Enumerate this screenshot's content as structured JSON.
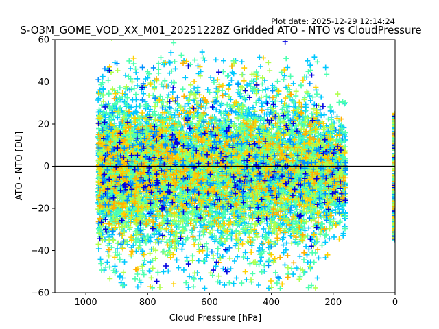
{
  "header": {
    "plot_date": "Plot date: 2025-12-29 12:14:24"
  },
  "chart_data": {
    "type": "scatter",
    "title": "S-O3M_GOME_VOD_XX_M01_20251228Z Gridded ATO - NTO vs CloudPressure",
    "xlabel": "Cloud Pressure [hPa]",
    "ylabel": "ATO - NTO [DU]",
    "xlim": [
      1100,
      0
    ],
    "ylim": [
      -60,
      60
    ],
    "x_inverted": true,
    "xticks": [
      1000,
      800,
      600,
      400,
      200,
      0
    ],
    "yticks": [
      -60,
      -40,
      -20,
      0,
      20,
      40,
      60
    ],
    "xtick_labels": [
      "1000",
      "800",
      "600",
      "400",
      "200",
      "0"
    ],
    "ytick_labels": [
      "−60",
      "−40",
      "−20",
      "0",
      "20",
      "40",
      "60"
    ],
    "marker": "plus",
    "grid": false,
    "legend": "none",
    "reference_line": {
      "y": 0,
      "color": "#000000"
    },
    "color_cycle": [
      "#00c8ff",
      "#4dffb0",
      "#b0ff4d",
      "#ffd000",
      "#ffb000",
      "#0000e0",
      "#0090ff"
    ],
    "series": [
      {
        "distribution": "dense cloud",
        "x_range": [
          960,
          140
        ],
        "y_center": -2,
        "y_spread": 14
      },
      {
        "distribution": "outliers",
        "x_range": [
          960,
          150
        ],
        "y_range": [
          -60,
          60
        ]
      },
      {
        "distribution": "column at x=0",
        "x": 0,
        "y_range": [
          -35,
          25
        ]
      }
    ]
  }
}
